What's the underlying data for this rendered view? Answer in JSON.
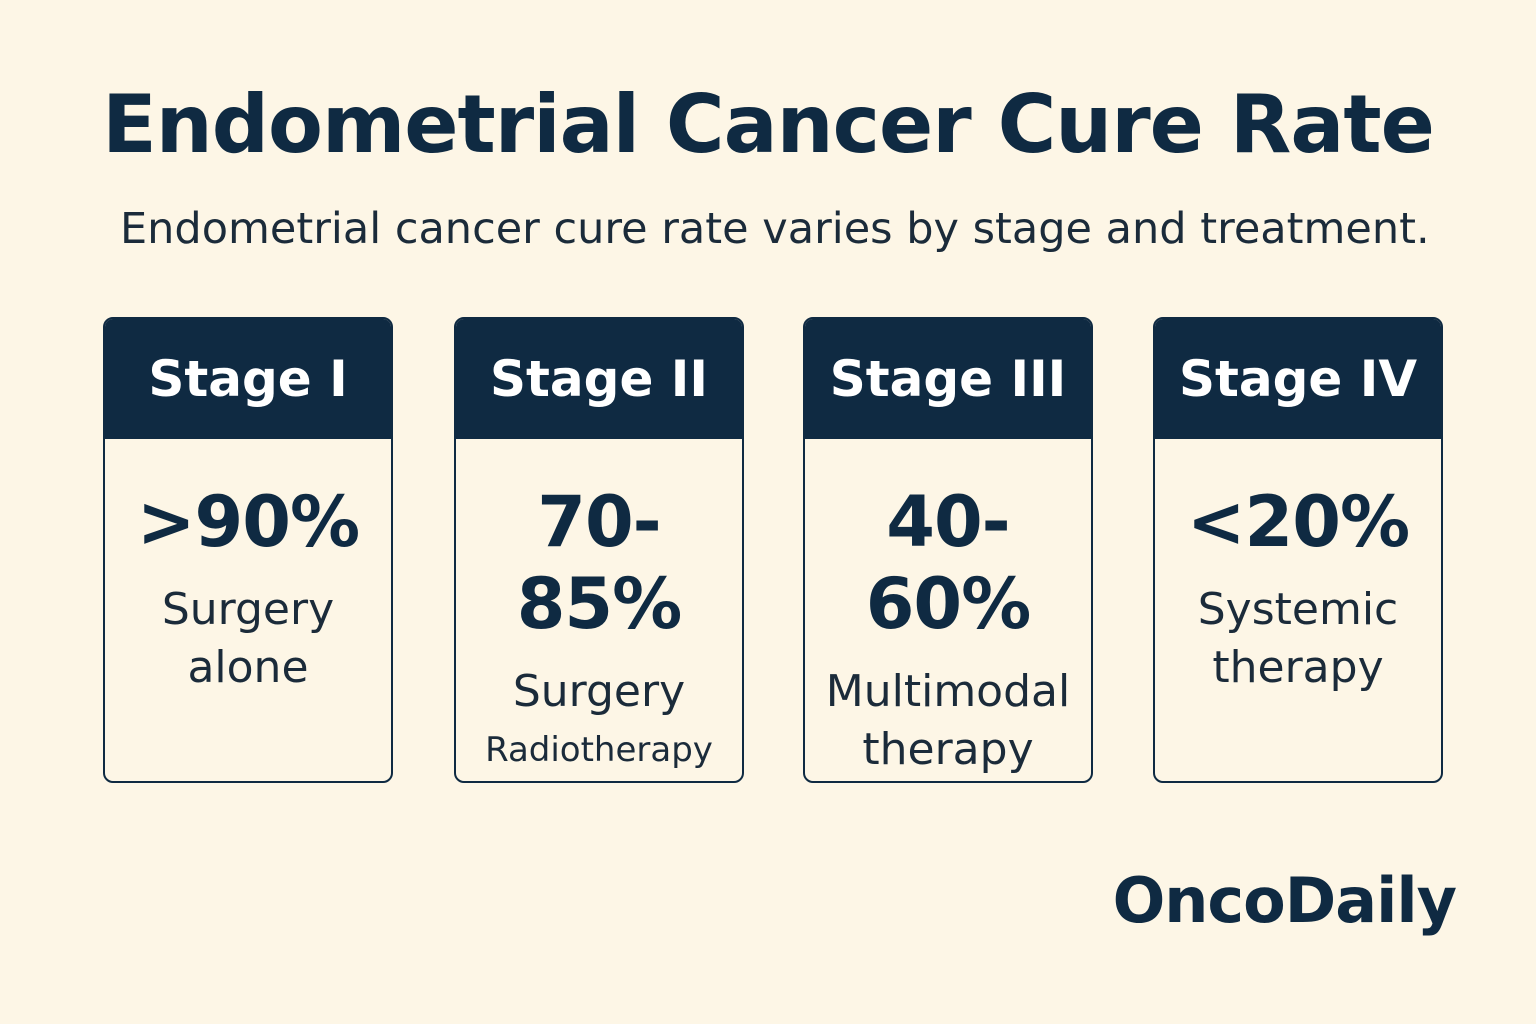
{
  "header": {
    "title": "Endometrial Cancer Cure Rate",
    "subtitle": "Endometrial cancer cure rate varies by stage and treatment."
  },
  "cards": [
    {
      "stage": "Stage I",
      "rate": ">90%",
      "treatment": [
        "Surgery",
        "alone"
      ]
    },
    {
      "stage": "Stage II",
      "rate": "70-85%",
      "treatment": [
        "Surgery",
        "Radiotherapy"
      ]
    },
    {
      "stage": "Stage III",
      "rate": "40-60%",
      "treatment": [
        "Multimodal",
        "therapy"
      ]
    },
    {
      "stage": "Stage IV",
      "rate": "<20%",
      "treatment": [
        "Systemic",
        "therapy"
      ]
    }
  ],
  "brand": "OncoDaily"
}
